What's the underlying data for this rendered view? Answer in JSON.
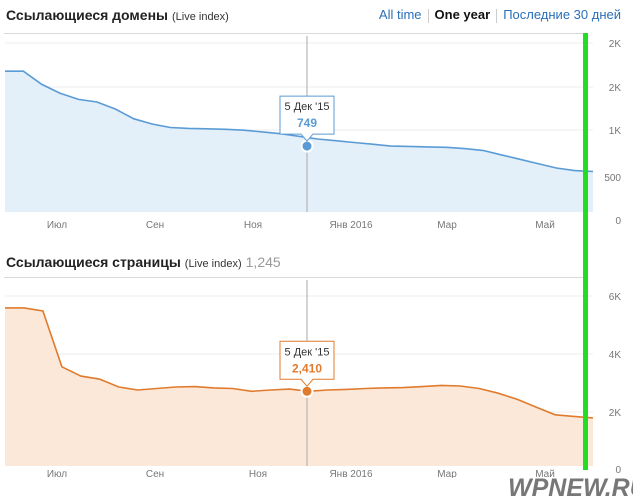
{
  "header": {
    "domains_title": "Ссылающиеся домены",
    "domains_sub": "(Live index)",
    "pages_title": "Ссылающиеся страницы",
    "pages_sub": "(Live index)",
    "pages_count": "1,245"
  },
  "tabs": [
    {
      "label": "All time",
      "active": false
    },
    {
      "label": "One year",
      "active": true
    },
    {
      "label": "Последние 30 дней",
      "active": false
    }
  ],
  "watermark": "WPNEW.RU",
  "colors": {
    "blue": "#5b9bd5",
    "orange": "#e07b2e",
    "green_marker": "#22dd22",
    "tab_link": "#2a6fb8"
  },
  "chart_data": [
    {
      "type": "area",
      "title": "Ссылающиеся домены",
      "x_tick_labels": [
        "Июл",
        "Сен",
        "Ноя",
        "Янв 2016",
        "Мар",
        "Май"
      ],
      "y_tick_labels": [
        "2K",
        "2K",
        "1K",
        "500",
        "0"
      ],
      "ylim": [
        0,
        2000
      ],
      "series": [
        {
          "values": [
            1600,
            1600,
            1450,
            1350,
            1280,
            1250,
            1170,
            1060,
            1000,
            960,
            950,
            945,
            940,
            930,
            910,
            890,
            860,
            830,
            810,
            790,
            770,
            749,
            745,
            740,
            735,
            720,
            700,
            650,
            600,
            550,
            500,
            470,
            460
          ]
        }
      ],
      "tooltip": {
        "date": "5 Дек '15",
        "value": "749"
      }
    },
    {
      "type": "area",
      "title": "Ссылающиеся страницы",
      "x_tick_labels": [
        "Июл",
        "Сен",
        "Ноя",
        "Янв 2016",
        "Мар",
        "Май"
      ],
      "y_tick_labels": [
        "6K",
        "4K",
        "2K",
        "0"
      ],
      "ylim": [
        0,
        6000
      ],
      "series": [
        {
          "values": [
            5100,
            5100,
            5000,
            3200,
            2900,
            2800,
            2550,
            2450,
            2500,
            2550,
            2560,
            2520,
            2500,
            2410,
            2450,
            2480,
            2410,
            2450,
            2470,
            2500,
            2520,
            2530,
            2560,
            2600,
            2580,
            2500,
            2350,
            2150,
            1900,
            1650,
            1600,
            1550
          ]
        }
      ],
      "tooltip": {
        "date": "5 Дек '15",
        "value": "2,410"
      }
    }
  ]
}
